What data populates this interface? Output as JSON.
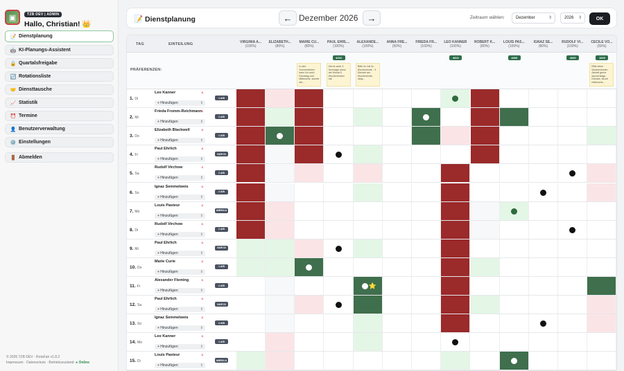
{
  "user": {
    "org_badge": "TZB DEV | ADMIN",
    "greeting": "Hallo, Christian! 👑"
  },
  "nav": [
    {
      "icon": "📝",
      "label": "Dienstplanung",
      "name": "dienstplanung",
      "active": true
    },
    {
      "icon": "🤖",
      "label": "KI-Planungs-Assistent",
      "name": "ki-assistent"
    },
    {
      "icon": "🔒",
      "label": "Quartalsfreigabe",
      "name": "quartalsfreigabe"
    },
    {
      "icon": "🔃",
      "label": "Rotationsliste",
      "name": "rotationsliste"
    },
    {
      "icon": "🤝",
      "label": "Diensttausche",
      "name": "diensttausche"
    },
    {
      "icon": "📈",
      "label": "Statistik",
      "name": "statistik"
    },
    {
      "icon": "⏰",
      "label": "Termine",
      "name": "termine"
    },
    {
      "icon": "👤",
      "label": "Benutzerverwaltung",
      "name": "benutzerverwaltung"
    },
    {
      "icon": "⚙️",
      "label": "Einstellungen",
      "name": "einstellungen"
    }
  ],
  "logout": {
    "icon": "🚪",
    "label": "Abmelden"
  },
  "footer": {
    "line1": "© 2026 TZB DEV · RotaFair v1.8.2",
    "line2": "Impressum · Datenschutz · Betriebszustand:",
    "status": "● Online"
  },
  "header": {
    "icon": "📝",
    "title": "Dienstplanung",
    "prev": "←",
    "next": "→",
    "month": "Dezember 2026",
    "range_label": "Zeitraum wählen:",
    "month_select": "Dezember",
    "year_select": "2026",
    "ok": "OK"
  },
  "table": {
    "col_tag": "TAG",
    "col_einteilung": "EINTEILUNG",
    "pref_label": "PRÄFERENZEN:",
    "add_label": "+ Hinzufügen",
    "remove": "×",
    "columns": [
      {
        "name": "VIRGINIA A...",
        "pct": "(100%)"
      },
      {
        "name": "ELIZABETH...",
        "pct": "(80%)"
      },
      {
        "name": "MARIE CU...",
        "pct": "(80%)",
        "note": "In den Sommerferien kann ich auch Dienstag und Mittwoche, sonnte die..."
      },
      {
        "name": "PAUL EHRL...",
        "pct": "(100%)",
        "pill": "4/0/2",
        "note": "Gerne auch 3 Sonntage wenn der Monat 5 Wochenenden hat"
      },
      {
        "name": "ALEXANDE...",
        "pct": "(100%)",
        "note": "Bitte im Juli 3x Wochenende - 3 Dienste am Wochenende, okay..."
      },
      {
        "name": "ANNA FRE...",
        "pct": "(50%)"
      },
      {
        "name": "FRIEDA FR...",
        "pct": "(100%)"
      },
      {
        "name": "LEO KANNER",
        "pct": "(100%)",
        "pill": "4/0/1"
      },
      {
        "name": "ROBERT K...",
        "pct": "(80%)"
      },
      {
        "name": "LOUIS PAS...",
        "pct": "(100%)",
        "pill": "4/0/0"
      },
      {
        "name": "IGNAZ SE...",
        "pct": "(80%)"
      },
      {
        "name": "RUDOLF VI...",
        "pct": "(100%)",
        "pill": "4/0/0"
      },
      {
        "name": "CÉCILE VO...",
        "pct": "(50%)",
        "pill": "1/0/0",
        "note": "Bitte keine Wochenenden. Aktuell gerne donnerstags Dienste, da ich mittwochs..."
      }
    ],
    "rows": [
      {
        "n": "1.",
        "d": "Di",
        "person": "Leo Kanner",
        "tag": "1 A/B",
        "cells": [
          4,
          3,
          4,
          0,
          0,
          0,
          0,
          2,
          4,
          0,
          0,
          0,
          0
        ],
        "dots": [
          {
            "c": 7,
            "t": "g"
          }
        ]
      },
      {
        "n": "2.",
        "d": "Mi",
        "person": "Frieda Fromm-Reichmann",
        "tag": "2 A/B",
        "cells": [
          4,
          2,
          4,
          0,
          2,
          0,
          5,
          0,
          4,
          5,
          0,
          0,
          0
        ],
        "dots": [
          {
            "c": 6,
            "t": "w"
          }
        ]
      },
      {
        "n": "3.",
        "d": "Do",
        "person": "Elizabeth Blackwell",
        "tag": "1 A/B",
        "cells": [
          4,
          5,
          4,
          0,
          0,
          0,
          5,
          3,
          4,
          0,
          0,
          0,
          2
        ],
        "dots": [
          {
            "c": 1,
            "t": "w"
          }
        ]
      },
      {
        "n": "4.",
        "d": "Fr",
        "person": "Paul Ehrlich",
        "tag": "NUR DI",
        "cells": [
          4,
          1,
          4,
          0,
          2,
          0,
          0,
          0,
          4,
          0,
          0,
          0,
          0
        ],
        "dots": [
          {
            "c": 3,
            "t": "b"
          }
        ]
      },
      {
        "n": "5.",
        "d": "Sa",
        "person": "Rudolf Virchow",
        "tag": "2 A/B",
        "cells": [
          4,
          1,
          3,
          0,
          3,
          0,
          0,
          4,
          0,
          0,
          0,
          0,
          3
        ],
        "dots": [
          {
            "c": 11,
            "t": "b"
          }
        ]
      },
      {
        "n": "6.",
        "d": "So",
        "person": "Ignaz Semmelweis",
        "tag": "2 A/B",
        "cells": [
          4,
          1,
          0,
          0,
          2,
          0,
          0,
          4,
          0,
          0,
          0,
          0,
          3
        ],
        "dots": [
          {
            "c": 10,
            "t": "b"
          }
        ]
      },
      {
        "n": "7.",
        "d": "Mo",
        "person": "Louis Pasteur",
        "tag": "AMBULA",
        "cells": [
          4,
          3,
          0,
          0,
          0,
          0,
          0,
          4,
          1,
          2,
          0,
          0,
          0
        ],
        "dots": [
          {
            "c": 9,
            "t": "g"
          }
        ]
      },
      {
        "n": "8.",
        "d": "Di",
        "person": "Rudolf Virchow",
        "tag": "2 A/B",
        "cells": [
          4,
          3,
          0,
          0,
          0,
          0,
          0,
          4,
          1,
          0,
          0,
          0,
          0
        ],
        "dots": [
          {
            "c": 11,
            "t": "b"
          }
        ]
      },
      {
        "n": "9.",
        "d": "Mi",
        "person": "Paul Ehrlich",
        "tag": "NUR DI",
        "cells": [
          2,
          2,
          3,
          0,
          2,
          0,
          0,
          4,
          0,
          0,
          0,
          0,
          0
        ],
        "dots": [
          {
            "c": 3,
            "t": "b"
          }
        ]
      },
      {
        "n": "10.",
        "d": "Do",
        "person": "Marie Curie",
        "tag": "1 A/B",
        "cells": [
          2,
          2,
          5,
          0,
          0,
          0,
          0,
          4,
          2,
          0,
          0,
          0,
          0
        ],
        "dots": [
          {
            "c": 2,
            "t": "w"
          }
        ]
      },
      {
        "n": "11.",
        "d": "Fr",
        "person": "Alexander Fleming",
        "tag": "2 A/B",
        "cells": [
          0,
          1,
          0,
          0,
          5,
          0,
          0,
          4,
          0,
          0,
          0,
          0,
          5
        ],
        "dots": [
          {
            "c": 4,
            "t": "w",
            "star": "⭐"
          }
        ]
      },
      {
        "n": "12.",
        "d": "Sa",
        "person": "Paul Ehrlich",
        "tag": "NUR DI",
        "cells": [
          0,
          1,
          3,
          0,
          5,
          0,
          0,
          4,
          2,
          0,
          0,
          0,
          3
        ],
        "dots": [
          {
            "c": 3,
            "t": "b"
          }
        ]
      },
      {
        "n": "13.",
        "d": "So",
        "person": "Ignaz Semmelweis",
        "tag": "2 A/B",
        "cells": [
          0,
          1,
          0,
          0,
          2,
          0,
          0,
          4,
          0,
          0,
          0,
          0,
          3
        ],
        "dots": [
          {
            "c": 10,
            "t": "b"
          }
        ]
      },
      {
        "n": "14.",
        "d": "Mo",
        "person": "Leo Kanner",
        "tag": "1 A/B",
        "cells": [
          0,
          3,
          0,
          0,
          2,
          0,
          0,
          0,
          0,
          0,
          0,
          0,
          0
        ],
        "dots": [
          {
            "c": 7,
            "t": "b"
          }
        ]
      },
      {
        "n": "15.",
        "d": "Di",
        "person": "Louis Pasteur",
        "tag": "AMBULA",
        "cells": [
          2,
          3,
          0,
          0,
          0,
          0,
          0,
          2,
          0,
          5,
          0,
          0,
          0
        ],
        "dots": [
          {
            "c": 9,
            "t": "w"
          }
        ]
      }
    ]
  }
}
